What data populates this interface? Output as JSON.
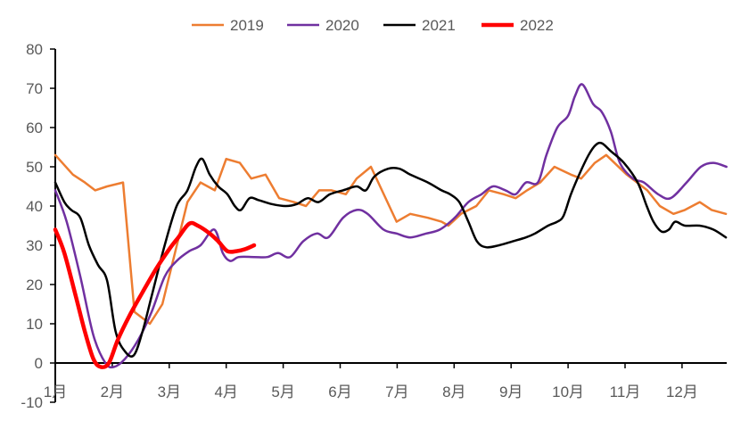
{
  "chart_data": {
    "type": "line",
    "title": "",
    "xlabel": "",
    "ylabel": "",
    "ylim": [
      -10,
      80
    ],
    "yticks": [
      -10,
      0,
      10,
      20,
      30,
      40,
      50,
      60,
      70,
      80
    ],
    "xlim": [
      1,
      12.8
    ],
    "xtick_labels": [
      "1月",
      "2月",
      "3月",
      "4月",
      "5月",
      "6月",
      "7月",
      "8月",
      "9月",
      "10月",
      "11月",
      "12月"
    ],
    "grid": false,
    "legend_position": "top",
    "series": [
      {
        "name": "2019",
        "color": "#ED7D31",
        "smooth": false,
        "width": 2.5,
        "x": [
          1.0,
          1.31,
          1.52,
          1.7,
          1.91,
          2.19,
          2.39,
          2.66,
          2.88,
          3.32,
          3.55,
          3.8,
          4.0,
          4.24,
          4.44,
          4.69,
          4.93,
          5.19,
          5.4,
          5.63,
          5.85,
          6.1,
          6.29,
          6.54,
          6.99,
          7.23,
          7.54,
          7.78,
          7.9,
          8.12,
          8.39,
          8.61,
          8.87,
          9.08,
          9.28,
          9.51,
          9.76,
          10.05,
          10.23,
          10.47,
          10.67,
          11.03,
          11.39,
          11.61,
          11.85,
          12.05,
          12.31,
          12.52,
          12.77
        ],
        "y": [
          53,
          48,
          46,
          44,
          45,
          46,
          13,
          10,
          15,
          41,
          46,
          44,
          52,
          51,
          47,
          48,
          42,
          41,
          40,
          44,
          44,
          43,
          47,
          50,
          36,
          38,
          37,
          36,
          35,
          38,
          40,
          44,
          43,
          42,
          44,
          46,
          50,
          48,
          47,
          51,
          53,
          48,
          44,
          40,
          38,
          39,
          41,
          39,
          38
        ]
      },
      {
        "name": "2020",
        "color": "#7030A0",
        "smooth": true,
        "width": 2.5,
        "x": [
          1.0,
          1.2,
          1.44,
          1.67,
          1.88,
          2.03,
          2.22,
          2.46,
          2.69,
          2.92,
          3.13,
          3.35,
          3.55,
          3.79,
          3.94,
          4.07,
          4.22,
          4.49,
          4.72,
          4.91,
          5.12,
          5.35,
          5.59,
          5.79,
          6.05,
          6.29,
          6.48,
          6.76,
          6.99,
          7.23,
          7.51,
          7.75,
          8.01,
          8.25,
          8.48,
          8.68,
          8.9,
          9.08,
          9.26,
          9.47,
          9.62,
          9.81,
          10.0,
          10.12,
          10.25,
          10.44,
          10.59,
          10.75,
          10.91,
          11.14,
          11.33,
          11.58,
          11.8,
          12.08,
          12.33,
          12.55,
          12.78
        ],
        "y": [
          44,
          36,
          22,
          7,
          0,
          -1,
          1,
          6,
          13,
          22,
          26,
          28.5,
          30,
          34,
          28,
          26,
          27,
          27,
          27,
          28,
          27,
          31,
          33,
          32,
          37,
          39,
          38,
          34,
          33,
          32,
          33,
          34,
          37,
          41,
          43,
          45,
          44,
          43,
          46,
          46,
          53,
          60,
          63,
          68,
          71,
          66,
          64,
          59,
          51,
          47,
          46,
          43,
          42,
          46,
          50,
          51,
          50
        ]
      },
      {
        "name": "2021",
        "color": "#000000",
        "smooth": true,
        "width": 2.5,
        "x": [
          1.0,
          1.16,
          1.28,
          1.44,
          1.59,
          1.75,
          1.91,
          2.06,
          2.22,
          2.38,
          2.53,
          2.69,
          2.92,
          3.13,
          3.32,
          3.47,
          3.58,
          3.71,
          3.86,
          4.02,
          4.15,
          4.26,
          4.41,
          4.57,
          4.8,
          5.04,
          5.24,
          5.43,
          5.62,
          5.82,
          6.05,
          6.29,
          6.45,
          6.6,
          6.84,
          7.04,
          7.23,
          7.54,
          7.78,
          7.93,
          8.09,
          8.25,
          8.4,
          8.56,
          8.79,
          9.03,
          9.26,
          9.42,
          9.65,
          9.81,
          9.92,
          10.05,
          10.21,
          10.36,
          10.48,
          10.59,
          10.75,
          10.98,
          11.22,
          11.38,
          11.5,
          11.64,
          11.77,
          11.88,
          12.05,
          12.31,
          12.55,
          12.77
        ],
        "y": [
          46,
          41,
          39,
          37,
          30,
          25,
          21,
          8,
          3,
          2,
          8,
          17,
          30,
          40,
          44,
          50,
          52,
          48,
          45,
          43,
          40,
          39,
          42,
          41.5,
          40.5,
          40,
          40.5,
          42,
          41,
          43,
          44,
          45,
          44,
          47.5,
          49.5,
          49.5,
          48,
          46,
          44,
          43,
          41,
          36,
          31,
          29.5,
          30,
          31,
          32,
          33,
          35,
          36,
          37.5,
          43,
          48.5,
          53,
          55.5,
          56,
          54,
          51,
          46,
          40,
          36,
          33.5,
          34,
          36,
          35,
          35,
          34,
          32
        ]
      },
      {
        "name": "2022",
        "color": "#FF0000",
        "smooth": true,
        "width": 4.5,
        "x": [
          1.0,
          1.16,
          1.36,
          1.52,
          1.67,
          1.8,
          1.94,
          2.1,
          2.3,
          2.53,
          2.77,
          3.0,
          3.16,
          3.35,
          3.5,
          3.71,
          3.86,
          4.02,
          4.18,
          4.33,
          4.49
        ],
        "y": [
          34,
          28,
          17,
          8,
          1,
          -1,
          0,
          6,
          12,
          18,
          24,
          29,
          32,
          35.5,
          35,
          33,
          31,
          28.5,
          28.5,
          29,
          30
        ]
      }
    ]
  }
}
